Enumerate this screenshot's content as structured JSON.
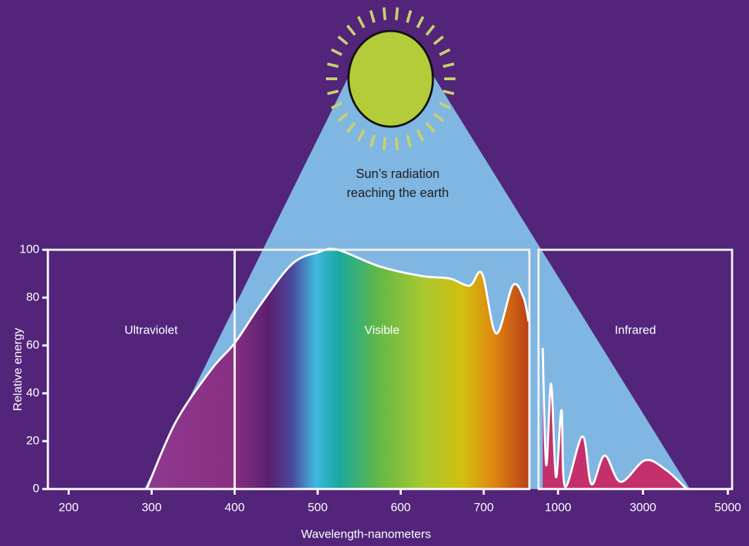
{
  "chart_data": [
    {
      "type": "area",
      "annotation": [
        "Sun’s radiation",
        "reaching the earth"
      ],
      "ylabel": "Relative energy",
      "xlabel": "Wavelength-nanometers",
      "regions": [
        {
          "label": "Ultraviolet",
          "x": [
            175,
            400
          ]
        },
        {
          "label": "Visible",
          "x": [
            400,
            755
          ]
        }
      ],
      "x": [
        294,
        329,
        372,
        400,
        431,
        469,
        501,
        524,
        575,
        626,
        659,
        683,
        698,
        715,
        735,
        748,
        754
      ],
      "values": [
        0,
        28,
        50,
        61,
        77,
        94,
        99,
        100,
        93,
        89,
        88,
        85,
        90,
        65,
        85,
        80,
        70
      ],
      "xlim": [
        175,
        755
      ],
      "ylim": [
        0,
        100
      ],
      "xticks": [
        200,
        300,
        400,
        500,
        600,
        700
      ],
      "yticks": [
        0,
        20,
        40,
        60,
        80,
        100
      ]
    },
    {
      "type": "area",
      "regions": [
        {
          "label": "Infrared",
          "x": [
            540,
            5100
          ]
        }
      ],
      "color": "#c4306c",
      "x": [
        639,
        721,
        836,
        951,
        1082,
        1164,
        1574,
        1787,
        2098,
        2475,
        3049,
        3541,
        4033
      ],
      "values": [
        59,
        10,
        44,
        5,
        33,
        1,
        22,
        2,
        14,
        3,
        12,
        8,
        0
      ],
      "xlim": [
        540,
        5100
      ],
      "ylim": [
        0,
        100
      ],
      "xticks": [
        1000,
        3000,
        5000
      ]
    }
  ]
}
